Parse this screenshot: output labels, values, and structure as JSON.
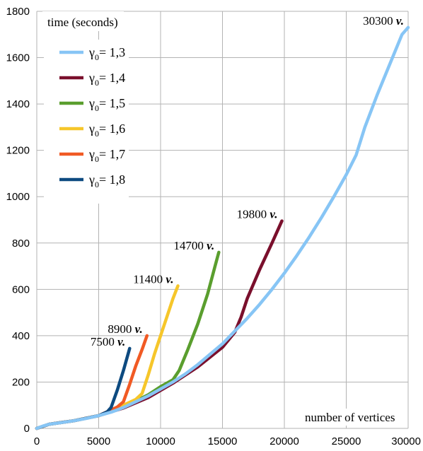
{
  "chart_data": {
    "type": "line",
    "ylabel": "time (seconds)",
    "xlabel": "number of vertices",
    "xlim": [
      0,
      30000
    ],
    "ylim": [
      0,
      1800
    ],
    "x_ticks": [
      "0",
      "5000",
      "10000",
      "15000",
      "20000",
      "25000",
      "30000"
    ],
    "y_ticks": [
      "0",
      "200",
      "400",
      "600",
      "800",
      "1000",
      "1200",
      "1400",
      "1600",
      "1800"
    ],
    "grid": true,
    "legend_position": "top-left",
    "legend_value_prefix": "= ",
    "series": [
      {
        "name_symbol": "γ",
        "name_subscript": "0",
        "name_value": "1,3",
        "color": "#87C5F5",
        "end_label_number": "30300",
        "end_label_unit": "v.",
        "points": [
          [
            0,
            0
          ],
          [
            500,
            10
          ],
          [
            1000,
            18
          ],
          [
            2000,
            25
          ],
          [
            3000,
            33
          ],
          [
            4000,
            43
          ],
          [
            5000,
            55
          ],
          [
            6000,
            70
          ],
          [
            7000,
            90
          ],
          [
            8000,
            115
          ],
          [
            9000,
            140
          ],
          [
            10000,
            170
          ],
          [
            11000,
            200
          ],
          [
            12000,
            235
          ],
          [
            13000,
            275
          ],
          [
            14000,
            320
          ],
          [
            15000,
            365
          ],
          [
            16000,
            420
          ],
          [
            17000,
            475
          ],
          [
            18000,
            535
          ],
          [
            19000,
            600
          ],
          [
            20000,
            670
          ],
          [
            21000,
            745
          ],
          [
            22000,
            825
          ],
          [
            23000,
            910
          ],
          [
            24000,
            1000
          ],
          [
            25000,
            1095
          ],
          [
            25800,
            1180
          ],
          [
            26500,
            1300
          ],
          [
            27500,
            1440
          ],
          [
            28500,
            1570
          ],
          [
            29500,
            1700
          ],
          [
            30000,
            1730
          ]
        ]
      },
      {
        "name_symbol": "γ",
        "name_subscript": "0",
        "name_value": "1,4",
        "color": "#7A0F2C",
        "end_label_number": "19800",
        "end_label_unit": "v.",
        "points": [
          [
            0,
            0
          ],
          [
            1000,
            18
          ],
          [
            3000,
            33
          ],
          [
            5000,
            55
          ],
          [
            7000,
            88
          ],
          [
            9000,
            133
          ],
          [
            11000,
            195
          ],
          [
            13000,
            265
          ],
          [
            15000,
            350
          ],
          [
            16000,
            415
          ],
          [
            16500,
            480
          ],
          [
            17000,
            560
          ],
          [
            18000,
            685
          ],
          [
            19000,
            800
          ],
          [
            19800,
            895
          ]
        ]
      },
      {
        "name_symbol": "γ",
        "name_subscript": "0",
        "name_value": "1,5",
        "color": "#5A9E2E",
        "end_label_number": "14700",
        "end_label_unit": "v.",
        "points": [
          [
            0,
            0
          ],
          [
            1000,
            18
          ],
          [
            3000,
            33
          ],
          [
            5000,
            55
          ],
          [
            7000,
            92
          ],
          [
            9000,
            145
          ],
          [
            10000,
            180
          ],
          [
            11000,
            210
          ],
          [
            11500,
            250
          ],
          [
            12200,
            340
          ],
          [
            13000,
            450
          ],
          [
            13800,
            580
          ],
          [
            14400,
            700
          ],
          [
            14700,
            760
          ]
        ]
      },
      {
        "name_symbol": "γ",
        "name_subscript": "0",
        "name_value": "1,6",
        "color": "#F6C62A",
        "end_label_number": "11400",
        "end_label_unit": "v.",
        "points": [
          [
            0,
            0
          ],
          [
            1000,
            18
          ],
          [
            3000,
            33
          ],
          [
            5000,
            55
          ],
          [
            7000,
            100
          ],
          [
            8000,
            125
          ],
          [
            8500,
            150
          ],
          [
            9000,
            230
          ],
          [
            9500,
            320
          ],
          [
            10000,
            400
          ],
          [
            10500,
            480
          ],
          [
            11000,
            560
          ],
          [
            11400,
            615
          ]
        ]
      },
      {
        "name_symbol": "γ",
        "name_subscript": "0",
        "name_value": "1,7",
        "color": "#F15A24",
        "end_label_number": "8900",
        "end_label_unit": "v.",
        "points": [
          [
            0,
            0
          ],
          [
            1000,
            18
          ],
          [
            3000,
            33
          ],
          [
            5000,
            55
          ],
          [
            6500,
            92
          ],
          [
            7000,
            115
          ],
          [
            7500,
            190
          ],
          [
            8000,
            270
          ],
          [
            8500,
            340
          ],
          [
            8900,
            400
          ]
        ]
      },
      {
        "name_symbol": "γ",
        "name_subscript": "0",
        "name_value": "1,8",
        "color": "#0D4A80",
        "end_label_number": "7500",
        "end_label_unit": "v.",
        "points": [
          [
            0,
            0
          ],
          [
            1000,
            18
          ],
          [
            3000,
            33
          ],
          [
            5000,
            55
          ],
          [
            5700,
            72
          ],
          [
            6000,
            90
          ],
          [
            6500,
            165
          ],
          [
            7000,
            250
          ],
          [
            7500,
            345
          ]
        ]
      }
    ]
  }
}
